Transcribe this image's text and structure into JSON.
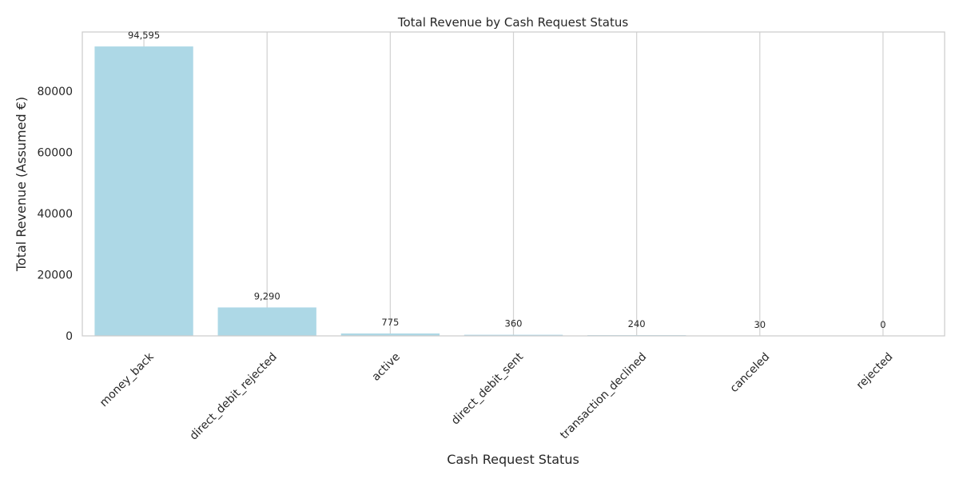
{
  "chart_data": {
    "type": "bar",
    "title": "Total Revenue by Cash Request Status",
    "xlabel": "Cash Request Status",
    "ylabel": "Total Revenue (Assumed €)",
    "categories": [
      "money_back",
      "direct_debit_rejected",
      "active",
      "direct_debit_sent",
      "transaction_declined",
      "canceled",
      "rejected"
    ],
    "values": [
      94595,
      9290,
      775,
      360,
      240,
      30,
      0
    ],
    "data_labels": [
      "94,595",
      "9,290",
      "775",
      "360",
      "240",
      "30",
      "0"
    ],
    "yticks": [
      0,
      20000,
      40000,
      60000,
      80000
    ],
    "ylim": [
      0,
      99325
    ],
    "grid": "vertical",
    "legend": "none",
    "colors": {
      "bar": "#add8e6",
      "grid": "#d3d3d3",
      "axis": "#cccccc",
      "text": "#262626"
    }
  }
}
